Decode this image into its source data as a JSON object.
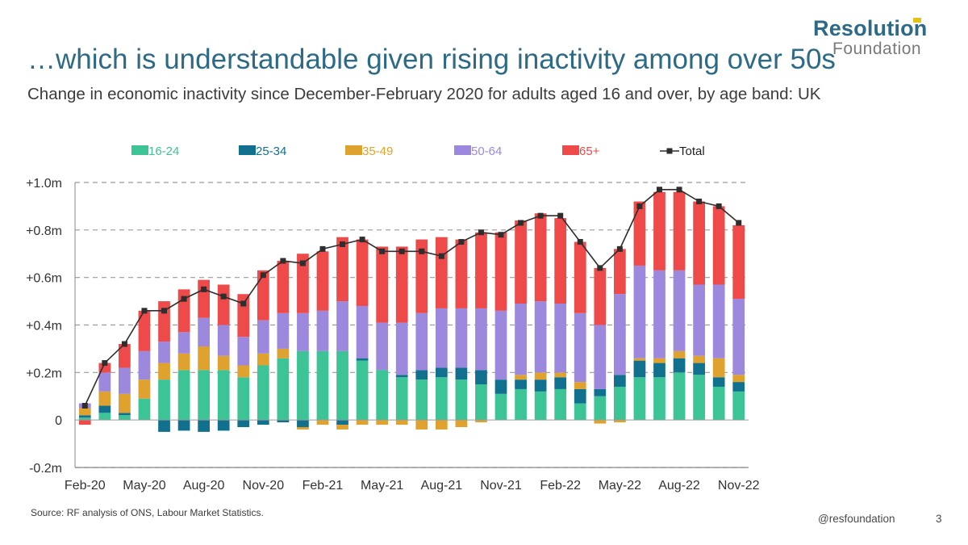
{
  "header": {
    "title": "…which is understandable given rising inactivity among over 50s",
    "subtitle": "Change in economic inactivity since December-February 2020 for adults aged 16 and over, by age band: UK"
  },
  "logo": {
    "line1": "Resolution",
    "line2": "Foundation"
  },
  "footer": {
    "source": "Source: RF analysis of ONS, Labour Market Statistics.",
    "handle": "@resfoundation",
    "page": "3"
  },
  "colors": {
    "16-24": "#3cc497",
    "25-34": "#12708f",
    "35-49": "#e0a22e",
    "50-64": "#9c88dc",
    "65+": "#ee4a4a",
    "Total": "#2e2e2e"
  },
  "chart_data": {
    "type": "bar",
    "stacked": true,
    "unit": "m",
    "categories": [
      "Feb-20",
      "Mar-20",
      "Apr-20",
      "May-20",
      "Jun-20",
      "Jul-20",
      "Aug-20",
      "Sep-20",
      "Oct-20",
      "Nov-20",
      "Dec-20",
      "Jan-21",
      "Feb-21",
      "Mar-21",
      "Apr-21",
      "May-21",
      "Jun-21",
      "Jul-21",
      "Aug-21",
      "Sep-21",
      "Oct-21",
      "Nov-21",
      "Dec-21",
      "Jan-22",
      "Feb-22",
      "Mar-22",
      "Apr-22",
      "May-22",
      "Jun-22",
      "Jul-22",
      "Aug-22",
      "Sep-22",
      "Oct-22",
      "Nov-22"
    ],
    "x_tick_labels": [
      "Feb-20",
      "May-20",
      "Aug-20",
      "Nov-20",
      "Feb-21",
      "May-21",
      "Aug-21",
      "Nov-21",
      "Feb-22",
      "May-22",
      "Aug-22",
      "Nov-22"
    ],
    "y_ticks": [
      -0.2,
      0,
      0.2,
      0.4,
      0.6,
      0.8,
      1.0
    ],
    "y_tick_labels": [
      "-0.2m",
      "0",
      "+0.2m",
      "+0.4m",
      "+0.6m",
      "+0.8m",
      "+1.0m"
    ],
    "ylim": [
      -0.2,
      1.0
    ],
    "grid": "horizontal dashed",
    "legend_position": "top",
    "series": [
      {
        "name": "16-24",
        "values": [
          0.01,
          0.03,
          0.02,
          0.09,
          0.17,
          0.21,
          0.21,
          0.21,
          0.18,
          0.23,
          0.26,
          0.29,
          0.29,
          0.29,
          0.25,
          0.21,
          0.18,
          0.17,
          0.18,
          0.17,
          0.15,
          0.11,
          0.13,
          0.12,
          0.13,
          0.07,
          0.1,
          0.14,
          0.18,
          0.18,
          0.2,
          0.19,
          0.14,
          0.12
        ]
      },
      {
        "name": "25-34",
        "values": [
          0.01,
          0.03,
          0.01,
          0.0,
          -0.05,
          -0.045,
          -0.05,
          -0.045,
          -0.03,
          -0.02,
          -0.01,
          -0.03,
          0.0,
          -0.02,
          0.01,
          0.0,
          0.01,
          0.04,
          0.04,
          0.05,
          0.06,
          0.06,
          0.04,
          0.05,
          0.05,
          0.06,
          0.03,
          0.05,
          0.07,
          0.06,
          0.06,
          0.05,
          0.04,
          0.04
        ]
      },
      {
        "name": "35-49",
        "values": [
          0.03,
          0.06,
          0.08,
          0.08,
          0.07,
          0.07,
          0.1,
          0.06,
          0.05,
          0.05,
          0.04,
          -0.01,
          -0.02,
          -0.02,
          -0.02,
          -0.02,
          -0.02,
          -0.04,
          -0.04,
          -0.03,
          -0.01,
          0.0,
          0.02,
          0.03,
          0.02,
          0.03,
          -0.015,
          -0.01,
          0.01,
          0.02,
          0.03,
          0.03,
          0.08,
          0.03
        ]
      },
      {
        "name": "50-64",
        "values": [
          0.02,
          0.08,
          0.11,
          0.12,
          0.09,
          0.09,
          0.12,
          0.13,
          0.12,
          0.14,
          0.15,
          0.16,
          0.17,
          0.21,
          0.22,
          0.2,
          0.22,
          0.24,
          0.25,
          0.25,
          0.26,
          0.29,
          0.3,
          0.3,
          0.29,
          0.29,
          0.27,
          0.34,
          0.39,
          0.37,
          0.34,
          0.3,
          0.31,
          0.32
        ]
      },
      {
        "name": "65+",
        "values": [
          -0.02,
          0.04,
          0.1,
          0.17,
          0.17,
          0.18,
          0.16,
          0.17,
          0.18,
          0.21,
          0.22,
          0.25,
          0.25,
          0.27,
          0.28,
          0.32,
          0.32,
          0.31,
          0.3,
          0.29,
          0.32,
          0.33,
          0.35,
          0.37,
          0.36,
          0.3,
          0.24,
          0.19,
          0.27,
          0.33,
          0.33,
          0.35,
          0.33,
          0.31
        ]
      }
    ],
    "line_series": {
      "name": "Total",
      "values": [
        0.06,
        0.24,
        0.32,
        0.46,
        0.46,
        0.51,
        0.55,
        0.52,
        0.49,
        0.61,
        0.67,
        0.66,
        0.72,
        0.74,
        0.76,
        0.71,
        0.71,
        0.71,
        0.69,
        0.75,
        0.79,
        0.78,
        0.83,
        0.86,
        0.86,
        0.75,
        0.64,
        0.72,
        0.9,
        0.97,
        0.97,
        0.92,
        0.9,
        0.83
      ]
    }
  }
}
